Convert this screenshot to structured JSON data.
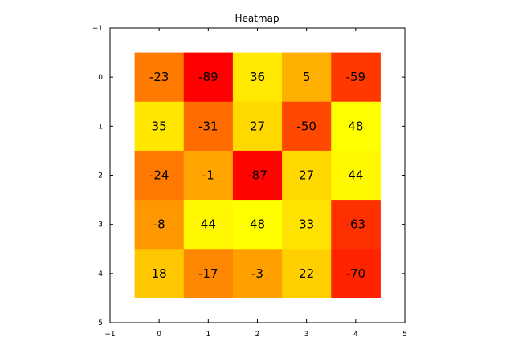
{
  "chart_data": {
    "type": "heatmap",
    "title": "Heatmap",
    "xlabel": "",
    "ylabel": "",
    "x_ticks": [
      "−1",
      "0",
      "1",
      "2",
      "3",
      "4",
      "5"
    ],
    "y_ticks": [
      "−1",
      "0",
      "1",
      "2",
      "3",
      "4",
      "5"
    ],
    "xlim": [
      -1,
      5
    ],
    "ylim": [
      5,
      -1
    ],
    "colormap": "autumn_r",
    "vmin": -89,
    "vmax": 48,
    "grid": false,
    "rows": [
      [
        -23,
        -89,
        36,
        5,
        -59
      ],
      [
        35,
        -31,
        27,
        -50,
        48
      ],
      [
        -24,
        -1,
        -87,
        27,
        44
      ],
      [
        -8,
        44,
        48,
        33,
        -63
      ],
      [
        18,
        -17,
        -3,
        22,
        -70
      ]
    ]
  }
}
